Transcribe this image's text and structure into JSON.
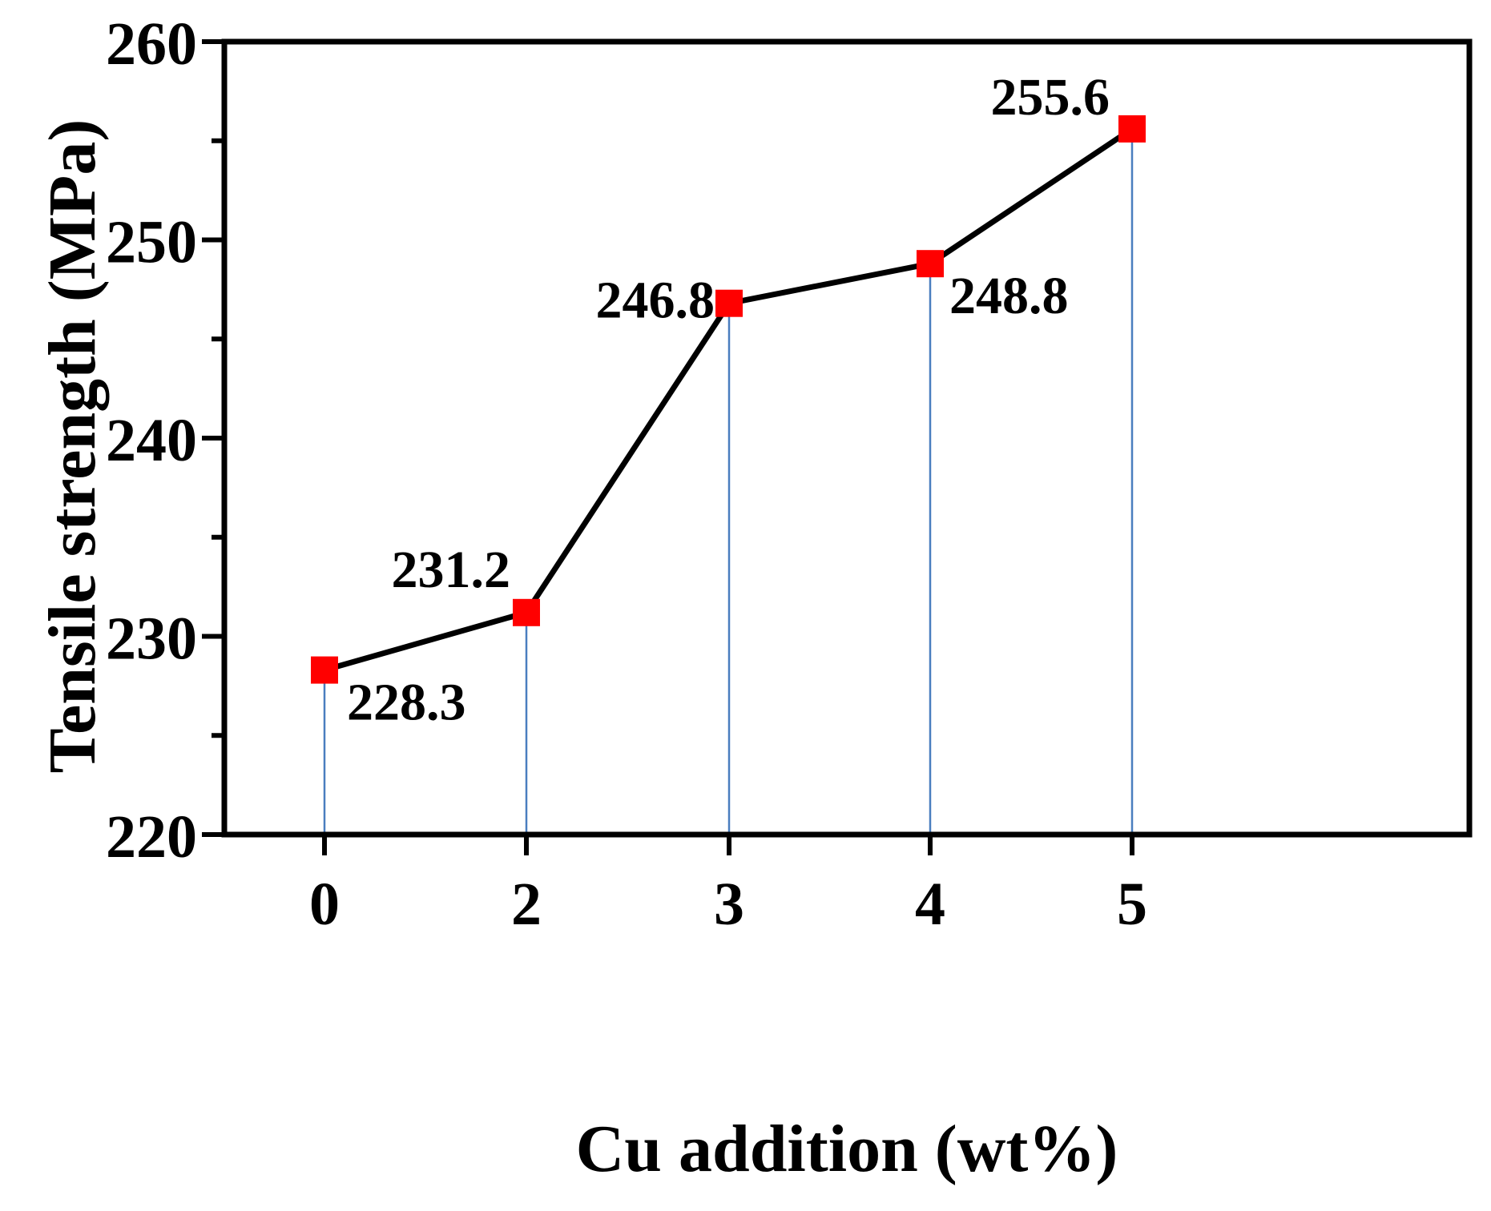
{
  "chart_data": {
    "type": "line",
    "xlabel": "Cu addition (wt%)",
    "ylabel": "Tensile strength (MPa)",
    "categories": [
      "0",
      "2",
      "3",
      "4",
      "5"
    ],
    "ylim": [
      220,
      260
    ],
    "yticks": [
      "220",
      "230",
      "240",
      "250",
      "260"
    ],
    "series": [
      {
        "values": [
          228.3,
          231.2,
          246.8,
          248.8,
          255.6
        ],
        "labels": [
          "228.3",
          "231.2",
          "246.8",
          "248.8",
          "255.6"
        ]
      }
    ],
    "drop_lines": true,
    "grid": false,
    "legend": "none",
    "colors": {
      "marker": "#ff0000",
      "line": "#000000",
      "drop_line": "#4a7ebf",
      "axis": "#000000"
    }
  }
}
